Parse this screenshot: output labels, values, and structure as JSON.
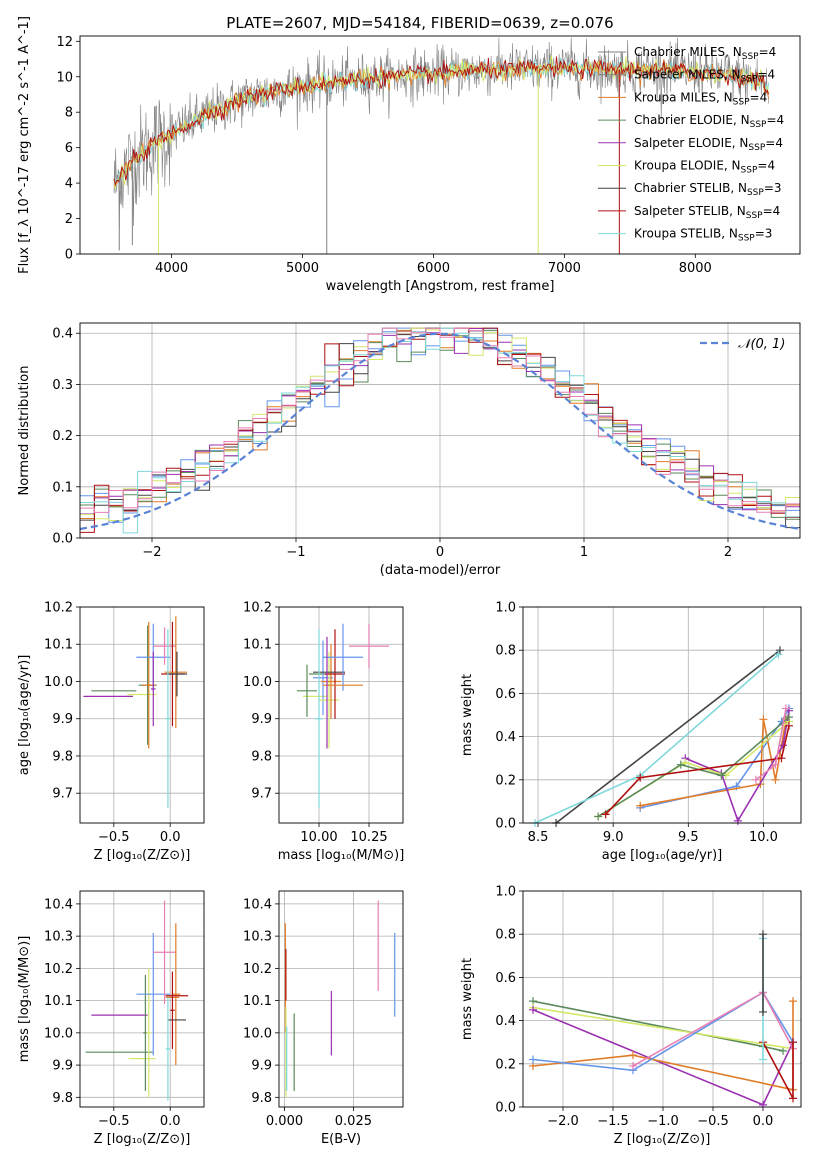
{
  "chart_data": [
    {
      "id": "spectrum",
      "type": "line",
      "title": "PLATE=2607, MJD=54184, FIBERID=0639, z=0.076",
      "xlabel": "wavelength [Angstrom, rest frame]",
      "ylabel": "Flux [f_λ 10^-17 erg cm^-2 s^-1 A^-1]",
      "xlim": [
        3300,
        8800
      ],
      "ylim": [
        0,
        12.3
      ],
      "xticks": [
        4000,
        5000,
        6000,
        7000,
        8000
      ],
      "yticks": [
        0,
        2,
        4,
        6,
        8,
        10,
        12
      ],
      "legend_placement": "right",
      "grid": false,
      "legend": [
        {
          "label": "Chabrier MILES, N",
          "sub": "SSP",
          "tail": "=4",
          "color": "#808080"
        },
        {
          "label": "Salpeter MILES, N",
          "sub": "SSP",
          "tail": "=4",
          "color": "#808080"
        },
        {
          "label": "Kroupa MILES, N",
          "sub": "SSP",
          "tail": "=4",
          "color": "#e07b27"
        },
        {
          "label": "Chabrier ELODIE, N",
          "sub": "SSP",
          "tail": "=4",
          "color": "#5a8a5a"
        },
        {
          "label": "Salpeter ELODIE, N",
          "sub": "SSP",
          "tail": "=4",
          "color": "#9b30b0"
        },
        {
          "label": "Kroupa ELODIE, N",
          "sub": "SSP",
          "tail": "=4",
          "color": "#d4e86a"
        },
        {
          "label": "Chabrier STELIB, N",
          "sub": "SSP",
          "tail": "=3",
          "color": "#444444"
        },
        {
          "label": "Salpeter STELIB, N",
          "sub": "SSP",
          "tail": "=4",
          "color": "#b01010"
        },
        {
          "label": "Kroupa STELIB, N",
          "sub": "SSP",
          "tail": "=3",
          "color": "#7fd8dc"
        }
      ],
      "continuum": [
        [
          3550,
          3.8
        ],
        [
          3700,
          5.2
        ],
        [
          3900,
          6.4
        ],
        [
          4100,
          7.2
        ],
        [
          4300,
          8.0
        ],
        [
          4600,
          8.9
        ],
        [
          5000,
          9.5
        ],
        [
          5500,
          9.9
        ],
        [
          6000,
          10.2
        ],
        [
          6500,
          10.4
        ],
        [
          7000,
          10.5
        ],
        [
          7500,
          10.4
        ],
        [
          8000,
          10.3
        ],
        [
          8500,
          9.8
        ],
        [
          8550,
          9.2
        ]
      ]
    },
    {
      "id": "residuals",
      "type": "histogram",
      "xlabel": "(data-model)/error",
      "ylabel": "Normed distribution",
      "xlim": [
        -2.5,
        2.5
      ],
      "ylim": [
        0,
        0.42
      ],
      "xticks": [
        -2,
        -1,
        0,
        1,
        2
      ],
      "xtick_labels": [
        "−2",
        "−1",
        "0",
        "1",
        "2"
      ],
      "yticks": [
        0.0,
        0.1,
        0.2,
        0.3,
        0.4
      ],
      "ytick_labels": [
        "0.0",
        "0.1",
        "0.2",
        "0.3",
        "0.4"
      ],
      "grid": true,
      "legend_label": "𝒩(0, 1)",
      "legend_placement": "top-right",
      "gaussian": {
        "mean": 0,
        "sigma": 1
      },
      "series_colors": [
        "#6495ed",
        "#e07b27",
        "#5a8a5a",
        "#9b30b0",
        "#d4e86a",
        "#444444",
        "#b01010",
        "#7fd8dc",
        "#e67fb5"
      ]
    },
    {
      "id": "age-vs-Z",
      "type": "scatter",
      "xlabel": "Z [log₁₀(Z/Z⊙)]",
      "ylabel": "age  [log₁₀(age/yr)]",
      "xlim": [
        -0.8,
        0.3
      ],
      "ylim": [
        9.62,
        10.2
      ],
      "xticks": [
        -0.5,
        0.0
      ],
      "xtick_labels": [
        "−0.5",
        "0.0"
      ],
      "yticks": [
        9.7,
        9.8,
        9.9,
        10.0,
        10.1,
        10.2
      ],
      "ytick_labels": [
        "9.7",
        "9.8",
        "9.9",
        "10.0",
        "10.1",
        "10.2"
      ],
      "points": [
        {
          "x": -0.5,
          "xerr": 0.2,
          "y": 9.975,
          "yerr": 0.0,
          "color": "#5a8a5a"
        },
        {
          "x": -0.55,
          "xerr": 0.22,
          "y": 9.96,
          "yerr": 0.0,
          "color": "#9b30b0"
        },
        {
          "x": -0.25,
          "xerr": 0.13,
          "y": 9.965,
          "yerr": 0.0,
          "color": "#d4e86a"
        },
        {
          "x": -0.2,
          "xerr": 0.08,
          "y": 9.99,
          "yerr": 0.16,
          "color": "#5a8a5a"
        },
        {
          "x": -0.19,
          "xerr": 0.06,
          "y": 9.99,
          "yerr": 0.17,
          "color": "#e07b27"
        },
        {
          "x": -0.15,
          "xerr": 0.15,
          "y": 10.065,
          "yerr": 0.09,
          "color": "#6495ed"
        },
        {
          "x": -0.05,
          "xerr": 0.1,
          "y": 10.095,
          "yerr": 0.05,
          "color": "#e67fb5"
        },
        {
          "x": 0.02,
          "xerr": 0.1,
          "y": 10.02,
          "yerr": 0.14,
          "color": "#b01010"
        },
        {
          "x": 0.05,
          "xerr": 0.1,
          "y": 10.025,
          "yerr": 0.15,
          "color": "#e07b27"
        },
        {
          "x": 0.06,
          "xerr": 0.09,
          "y": 10.02,
          "yerr": 0.06,
          "color": "#444444"
        },
        {
          "x": -0.02,
          "xerr": 0.02,
          "y": 9.9,
          "yerr": 0.24,
          "color": "#7fd8dc"
        },
        {
          "x": -0.15,
          "xerr": 0.02,
          "y": 9.98,
          "yerr": 0.1,
          "color": "#9b30b0"
        }
      ]
    },
    {
      "id": "age-vs-mass",
      "type": "scatter",
      "xlabel": "mass [log₁₀(M/M⊙)]",
      "ylabel": "",
      "xlim": [
        9.8,
        10.42
      ],
      "ylim": [
        9.62,
        10.2
      ],
      "xticks": [
        10.0,
        10.25
      ],
      "xtick_labels": [
        "10.00",
        "10.25"
      ],
      "yticks": [
        9.7,
        9.8,
        9.9,
        10.0,
        10.1,
        10.2
      ],
      "ytick_labels": [
        "9.7",
        "9.8",
        "9.9",
        "10.0",
        "10.1",
        "10.2"
      ],
      "points": [
        {
          "x": 9.98,
          "xerr": 0.06,
          "y": 9.96,
          "yerr": 0.0,
          "color": "#d4e86a"
        },
        {
          "x": 9.94,
          "xerr": 0.05,
          "y": 9.975,
          "yerr": 0.07,
          "color": "#5a8a5a"
        },
        {
          "x": 10.0,
          "xerr": 0.05,
          "y": 10.02,
          "yerr": 0.0,
          "color": "#5a8a5a"
        },
        {
          "x": 10.02,
          "xerr": 0.05,
          "y": 10.01,
          "yerr": 0.1,
          "color": "#6495ed"
        },
        {
          "x": 10.05,
          "xerr": 0.05,
          "y": 9.95,
          "yerr": 0.13,
          "color": "#d4e86a"
        },
        {
          "x": 10.06,
          "xerr": 0.05,
          "y": 10.0,
          "yerr": 0.1,
          "color": "#e07b27"
        },
        {
          "x": 10.08,
          "xerr": 0.05,
          "y": 10.02,
          "yerr": 0.12,
          "color": "#b01010"
        },
        {
          "x": 10.05,
          "xerr": 0.08,
          "y": 10.025,
          "yerr": 0.0,
          "color": "#444444"
        },
        {
          "x": 10.12,
          "xerr": 0.1,
          "y": 10.065,
          "yerr": 0.09,
          "color": "#6495ed"
        },
        {
          "x": 10.12,
          "xerr": 0.1,
          "y": 9.99,
          "yerr": 0.0,
          "color": "#e07b27"
        },
        {
          "x": 10.25,
          "xerr": 0.1,
          "y": 10.095,
          "yerr": 0.06,
          "color": "#e67fb5"
        },
        {
          "x": 10.0,
          "xerr": 0.02,
          "y": 9.9,
          "yerr": 0.24,
          "color": "#7fd8dc"
        },
        {
          "x": 10.04,
          "xerr": 0.0,
          "y": 9.97,
          "yerr": 0.15,
          "color": "#9b30b0"
        }
      ]
    },
    {
      "id": "massweight-vs-age",
      "type": "line",
      "xlabel": "age  [log₁₀(age/yr)]",
      "ylabel": "mass weight",
      "xlim": [
        8.4,
        10.25
      ],
      "ylim": [
        0.0,
        1.0
      ],
      "xticks": [
        8.5,
        9.0,
        9.5,
        10.0
      ],
      "xtick_labels": [
        "8.5",
        "9.0",
        "9.5",
        "10.0"
      ],
      "yticks": [
        0.0,
        0.2,
        0.4,
        0.6,
        0.8,
        1.0
      ],
      "ytick_labels": [
        "0.0",
        "0.2",
        "0.4",
        "0.6",
        "0.8",
        "1.0"
      ],
      "grid": true,
      "series": [
        {
          "color": "#444444",
          "x": [
            8.62,
            10.11
          ],
          "y": [
            0.0,
            0.8
          ]
        },
        {
          "color": "#7fd8dc",
          "x": [
            8.48,
            9.18,
            10.1
          ],
          "y": [
            0.0,
            0.22,
            0.78
          ]
        },
        {
          "color": "#6495ed",
          "x": [
            9.18,
            9.82,
            10.12,
            10.17
          ],
          "y": [
            0.07,
            0.17,
            0.47,
            0.53
          ]
        },
        {
          "color": "#e07b27",
          "x": [
            9.18,
            9.98,
            10.0,
            10.08,
            10.15
          ],
          "y": [
            0.08,
            0.18,
            0.48,
            0.2,
            0.48
          ]
        },
        {
          "color": "#9b30b0",
          "x": [
            9.48,
            9.72,
            9.83,
            10.13,
            10.17
          ],
          "y": [
            0.3,
            0.23,
            0.01,
            0.36,
            0.52
          ]
        },
        {
          "color": "#d4e86a",
          "x": [
            8.9,
            9.48,
            9.75,
            10.17
          ],
          "y": [
            0.03,
            0.28,
            0.22,
            0.47
          ]
        },
        {
          "color": "#5a8a5a",
          "x": [
            8.9,
            9.45,
            9.72,
            10.17
          ],
          "y": [
            0.03,
            0.27,
            0.22,
            0.49
          ]
        },
        {
          "color": "#b01010",
          "x": [
            8.95,
            9.18,
            10.12,
            10.17
          ],
          "y": [
            0.04,
            0.21,
            0.3,
            0.45
          ]
        },
        {
          "color": "#e67fb5",
          "x": [
            9.95,
            10.08,
            10.15
          ],
          "y": [
            0.2,
            0.27,
            0.53
          ]
        }
      ]
    },
    {
      "id": "mass-vs-Z",
      "type": "scatter",
      "xlabel": "Z [log₁₀(Z/Z⊙)]",
      "ylabel": "mass [log₁₀(M/M⊙)]",
      "xlim": [
        -0.8,
        0.3
      ],
      "ylim": [
        9.77,
        10.44
      ],
      "xticks": [
        -0.5,
        0.0
      ],
      "xtick_labels": [
        "−0.5",
        "0.0"
      ],
      "yticks": [
        9.8,
        9.9,
        10.0,
        10.1,
        10.2,
        10.3,
        10.4
      ],
      "ytick_labels": [
        "9.8",
        "9.9",
        "10.0",
        "10.1",
        "10.2",
        "10.3",
        "10.4"
      ],
      "points": [
        {
          "x": -0.45,
          "xerr": 0.3,
          "y": 9.94,
          "yerr": 0.0,
          "color": "#5a8a5a"
        },
        {
          "x": -0.45,
          "xerr": 0.25,
          "y": 10.055,
          "yerr": 0.0,
          "color": "#9b30b0"
        },
        {
          "x": -0.25,
          "xerr": 0.12,
          "y": 9.92,
          "yerr": 0.0,
          "color": "#d4e86a"
        },
        {
          "x": -0.22,
          "xerr": 0.02,
          "y": 10.0,
          "yerr": 0.18,
          "color": "#5a8a5a"
        },
        {
          "x": -0.19,
          "xerr": 0.02,
          "y": 10.0,
          "yerr": 0.2,
          "color": "#d4e86a"
        },
        {
          "x": -0.15,
          "xerr": 0.15,
          "y": 10.12,
          "yerr": 0.19,
          "color": "#6495ed"
        },
        {
          "x": -0.05,
          "xerr": 0.1,
          "y": 10.25,
          "yerr": 0.16,
          "color": "#e67fb5"
        },
        {
          "x": 0.02,
          "xerr": 0.06,
          "y": 10.11,
          "yerr": 0.0,
          "color": "#e07b27"
        },
        {
          "x": 0.05,
          "xerr": 0.04,
          "y": 10.12,
          "yerr": 0.22,
          "color": "#e07b27"
        },
        {
          "x": 0.06,
          "xerr": 0.1,
          "y": 10.115,
          "yerr": 0.0,
          "color": "#b01010"
        },
        {
          "x": 0.06,
          "xerr": 0.08,
          "y": 10.04,
          "yerr": 0.0,
          "color": "#444444"
        },
        {
          "x": 0.02,
          "xerr": 0.02,
          "y": 10.07,
          "yerr": 0.12,
          "color": "#b01010"
        },
        {
          "x": -0.02,
          "xerr": 0.02,
          "y": 9.95,
          "yerr": 0.16,
          "color": "#7fd8dc"
        }
      ]
    },
    {
      "id": "mass-vs-EBV",
      "type": "scatter",
      "xlabel": "E(B-V)",
      "ylabel": "",
      "xlim": [
        -0.002,
        0.043
      ],
      "ylim": [
        9.77,
        10.44
      ],
      "xticks": [
        0.0,
        0.025
      ],
      "xtick_labels": [
        "0.000",
        "0.025"
      ],
      "yticks": [
        9.8,
        9.9,
        10.0,
        10.1,
        10.2,
        10.3,
        10.4
      ],
      "ytick_labels": [
        "9.8",
        "9.9",
        "10.0",
        "10.1",
        "10.2",
        "10.3",
        "10.4"
      ],
      "points": [
        {
          "x": 0.0003,
          "xerr": 0.0,
          "y": 10.17,
          "yerr": 0.17,
          "color": "#e07b27"
        },
        {
          "x": 0.0005,
          "xerr": 0.0,
          "y": 10.18,
          "yerr": 0.08,
          "color": "#b01010"
        },
        {
          "x": 0.0005,
          "xerr": 0.0,
          "y": 9.94,
          "yerr": 0.14,
          "color": "#d4e86a"
        },
        {
          "x": 0.0008,
          "xerr": 0.0,
          "y": 9.92,
          "yerr": 0.1,
          "color": "#7fd8dc"
        },
        {
          "x": 0.0035,
          "xerr": 0.0,
          "y": 9.94,
          "yerr": 0.12,
          "color": "#5a8a5a"
        },
        {
          "x": 0.017,
          "xerr": 0.0,
          "y": 10.03,
          "yerr": 0.1,
          "color": "#9b30b0"
        },
        {
          "x": 0.034,
          "xerr": 0.0,
          "y": 10.27,
          "yerr": 0.14,
          "color": "#e67fb5"
        },
        {
          "x": 0.04,
          "xerr": 0.0,
          "y": 10.18,
          "yerr": 0.13,
          "color": "#6495ed"
        }
      ]
    },
    {
      "id": "massweight-vs-Z",
      "type": "line",
      "xlabel": "Z [log₁₀(Z/Z⊙)]",
      "ylabel": "mass weight",
      "xlim": [
        -2.4,
        0.38
      ],
      "ylim": [
        0.0,
        1.0
      ],
      "xticks": [
        -2.0,
        -1.5,
        -1.0,
        -0.5,
        0.0
      ],
      "xtick_labels": [
        "−2.0",
        "−1.5",
        "−1.0",
        "−0.5",
        "0.0"
      ],
      "yticks": [
        0.0,
        0.2,
        0.4,
        0.6,
        0.8,
        1.0
      ],
      "ytick_labels": [
        "0.0",
        "0.2",
        "0.4",
        "0.6",
        "0.8",
        "1.0"
      ],
      "grid": true,
      "series": [
        {
          "color": "#5a8a5a",
          "x": [
            -2.3,
            0.0,
            0.2
          ],
          "y": [
            0.49,
            0.28,
            0.26
          ]
        },
        {
          "color": "#d4e86a",
          "x": [
            -2.3,
            0.3
          ],
          "y": [
            0.46,
            0.27
          ]
        },
        {
          "color": "#9b30b0",
          "x": [
            -2.3,
            0.0,
            0.3
          ],
          "y": [
            0.45,
            0.01,
            0.3
          ]
        },
        {
          "color": "#e07b27",
          "x": [
            -2.3,
            -1.3,
            0.3,
            0.3
          ],
          "y": [
            0.19,
            0.24,
            0.08,
            0.49
          ]
        },
        {
          "color": "#6495ed",
          "x": [
            -2.3,
            -1.3,
            0.0,
            0.3
          ],
          "y": [
            0.22,
            0.17,
            0.53,
            0.3
          ]
        },
        {
          "color": "#e67fb5",
          "x": [
            -1.3,
            0.0,
            0.3
          ],
          "y": [
            0.19,
            0.53,
            0.27
          ]
        },
        {
          "color": "#b01010",
          "x": [
            0.0,
            0.3,
            0.3
          ],
          "y": [
            0.3,
            0.04,
            0.3
          ]
        },
        {
          "color": "#7fd8dc",
          "x": [
            0.0,
            0.0
          ],
          "y": [
            0.22,
            0.78
          ]
        },
        {
          "color": "#444444",
          "x": [
            0.0,
            0.0
          ],
          "y": [
            0.44,
            0.8
          ]
        }
      ]
    }
  ]
}
